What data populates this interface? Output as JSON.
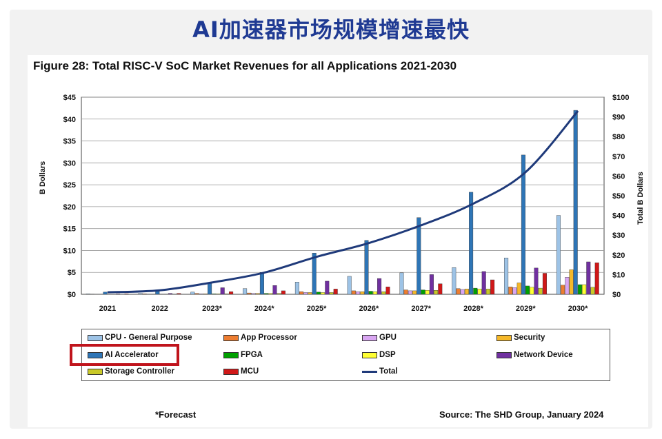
{
  "headline": "AI加速器市场规模增速最快",
  "chart_data": {
    "type": "bar",
    "title": "Figure 28: Total RISC-V SoC Market Revenues for all Applications 2021-2030",
    "ylabel": "B Dollars",
    "y2label": "Total B Dollars",
    "ylim": [
      0,
      45
    ],
    "y2lim": [
      0,
      100
    ],
    "yticks": [
      "$0",
      "$5",
      "$10",
      "$15",
      "$20",
      "$25",
      "$30",
      "$35",
      "$40",
      "$45"
    ],
    "y2ticks": [
      "$0",
      "$10",
      "$20",
      "$30",
      "$40",
      "$50",
      "$60",
      "$70",
      "$80",
      "$90",
      "$100"
    ],
    "categories": [
      "2021",
      "2022",
      "2023*",
      "2024*",
      "2025*",
      "2026*",
      "2027*",
      "2028*",
      "2029*",
      "2030*"
    ],
    "series": [
      {
        "name": "CPU - General Purpose",
        "color": "#9dc3e6",
        "values": [
          0.1,
          0.2,
          0.5,
          1.3,
          2.8,
          4.1,
          4.9,
          6.1,
          8.3,
          18.0
        ]
      },
      {
        "name": "App Processor",
        "color": "#ed7d31",
        "values": [
          0.05,
          0.1,
          0.2,
          0.3,
          0.6,
          0.8,
          1.0,
          1.3,
          1.7,
          2.1
        ]
      },
      {
        "name": "GPU",
        "color": "#d9a6f2",
        "values": [
          0.0,
          0.05,
          0.1,
          0.2,
          0.4,
          0.6,
          0.8,
          1.1,
          1.5,
          3.9
        ]
      },
      {
        "name": "Security",
        "color": "#f5b829",
        "values": [
          0.0,
          0.05,
          0.1,
          0.2,
          0.4,
          0.6,
          0.8,
          1.2,
          2.6,
          5.6
        ]
      },
      {
        "name": "AI Accelerator",
        "color": "#2e75b6",
        "values": [
          0.5,
          1.0,
          2.5,
          5.0,
          9.4,
          12.3,
          17.5,
          23.3,
          31.8,
          42.0
        ]
      },
      {
        "name": "FPGA",
        "color": "#00a000",
        "values": [
          0.0,
          0.05,
          0.1,
          0.2,
          0.5,
          0.7,
          1.0,
          1.4,
          1.9,
          2.2
        ]
      },
      {
        "name": "DSP",
        "color": "#ffff33",
        "values": [
          0.0,
          0.05,
          0.1,
          0.2,
          0.4,
          0.6,
          0.9,
          1.2,
          1.6,
          2.2
        ]
      },
      {
        "name": "Network Device",
        "color": "#7030a0",
        "values": [
          0.1,
          0.2,
          1.5,
          2.0,
          3.0,
          3.6,
          4.5,
          5.2,
          6.0,
          7.4
        ]
      },
      {
        "name": "Storage Controller",
        "color": "#c9c928",
        "values": [
          0.0,
          0.05,
          0.1,
          0.2,
          0.4,
          0.6,
          0.9,
          1.2,
          1.4,
          1.6
        ]
      },
      {
        "name": "MCU",
        "color": "#d01818",
        "values": [
          0.1,
          0.2,
          0.6,
          0.8,
          1.2,
          1.7,
          2.4,
          3.3,
          4.8,
          7.2
        ]
      }
    ],
    "total": {
      "name": "Total",
      "color": "#1f3a7a",
      "values": [
        1,
        2,
        6,
        11,
        19,
        26,
        35,
        46,
        62,
        93
      ]
    },
    "legend": [
      "CPU - General Purpose",
      "App Processor",
      "GPU",
      "Security",
      "AI Accelerator",
      "FPGA",
      "DSP",
      "Network Device",
      "Storage Controller",
      "MCU",
      "Total"
    ]
  },
  "footnote": "*Forecast",
  "source": "Source: The SHD Group, January 2024"
}
